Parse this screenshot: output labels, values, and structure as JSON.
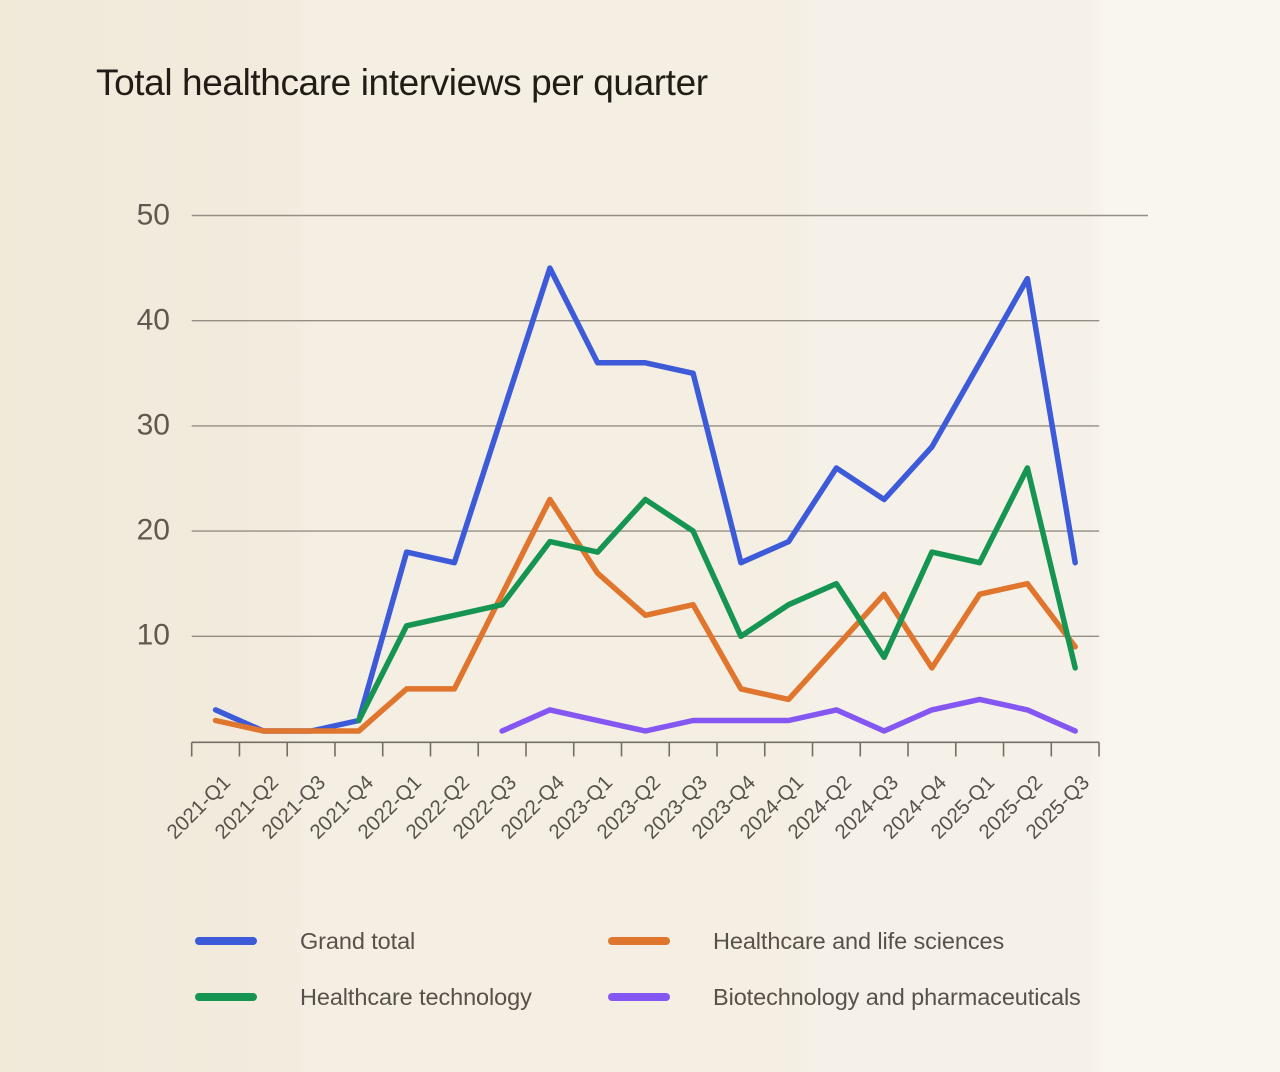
{
  "title": "Total healthcare interviews per quarter",
  "colors": {
    "grid": "#948e85",
    "axis": "#746f66",
    "tick_label": "#57524a",
    "y_label": "#5f594f",
    "title_text": "#211c15",
    "background_left": "#f2ebde",
    "background_right": "#f9f6ef"
  },
  "chart_data": {
    "type": "line",
    "title": "Total healthcare interviews per quarter",
    "categories": [
      "2021-Q1",
      "2021-Q2",
      "2021-Q3",
      "2021-Q4",
      "2022-Q1",
      "2022-Q2",
      "2022-Q3",
      "2022-Q4",
      "2023-Q1",
      "2023-Q2",
      "2023-Q3",
      "2023-Q4",
      "2024-Q1",
      "2024-Q2",
      "2024-Q3",
      "2024-Q4",
      "2025-Q1",
      "2025-Q2",
      "2025-Q3"
    ],
    "series": [
      {
        "name": "Grand total",
        "color": "#3d5bd9",
        "values": [
          3,
          1,
          1,
          2,
          18,
          17,
          31,
          45,
          36,
          36,
          35,
          17,
          19,
          26,
          23,
          28,
          36,
          44,
          17
        ]
      },
      {
        "name": "Healthcare and life sciences",
        "color": "#e0762e",
        "values": [
          2,
          1,
          1,
          1,
          5,
          5,
          14,
          23,
          16,
          12,
          13,
          5,
          4,
          9,
          14,
          7,
          14,
          15,
          9
        ]
      },
      {
        "name": "Healthcare technology",
        "color": "#169552",
        "values": [
          null,
          null,
          null,
          2,
          11,
          12,
          13,
          19,
          18,
          23,
          20,
          10,
          13,
          15,
          8,
          18,
          17,
          26,
          7
        ]
      },
      {
        "name": "Biotechnology and pharmaceuticals",
        "color": "#8457f2",
        "values": [
          null,
          null,
          null,
          null,
          null,
          null,
          1,
          3,
          2,
          1,
          2,
          2,
          2,
          3,
          1,
          3,
          4,
          3,
          1
        ]
      }
    ],
    "ylim": [
      0,
      50
    ],
    "yticks": [
      10,
      20,
      30,
      40,
      50
    ],
    "grid": true,
    "legend_position": "bottom"
  }
}
